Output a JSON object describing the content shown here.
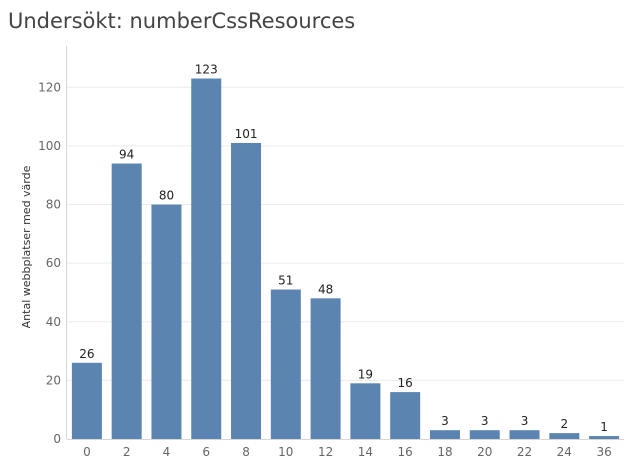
{
  "title": "Undersökt: numberCssResources",
  "colors": {
    "bar": "#5b84b1",
    "grid": "#ececec",
    "axis": "#d6d6d6"
  },
  "chart_data": {
    "type": "bar",
    "title": "Undersökt: numberCssResources",
    "xlabel": "",
    "ylabel": "Antal webbplatser med värde",
    "categories": [
      "0",
      "2",
      "4",
      "6",
      "8",
      "10",
      "12",
      "14",
      "16",
      "18",
      "20",
      "22",
      "24",
      "36"
    ],
    "values": [
      26,
      94,
      80,
      123,
      101,
      51,
      48,
      19,
      16,
      3,
      3,
      3,
      2,
      1
    ],
    "ylim": [
      0,
      130
    ],
    "yticks": [
      0,
      20,
      40,
      60,
      80,
      100,
      120
    ],
    "grid": true,
    "data_labels": true
  }
}
